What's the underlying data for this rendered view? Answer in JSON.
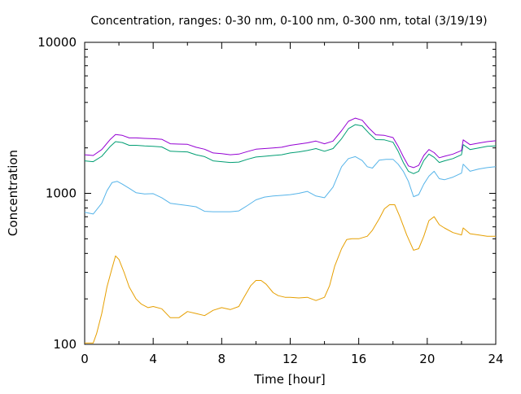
{
  "chart_data": {
    "type": "line",
    "title": "Concentration, ranges: 0-30 nm, 0-100 nm, 0-300 nm, total (3/19/19)",
    "xlabel": "Time [hour]",
    "ylabel": "Concentration",
    "xlim": [
      0,
      24
    ],
    "ylim": [
      100,
      10000
    ],
    "yscale": "log",
    "grid": false,
    "x_ticks": [
      "0",
      "4",
      "8",
      "12",
      "16",
      "20",
      "24"
    ],
    "x_tick_values": [
      0,
      4,
      8,
      12,
      16,
      20,
      24
    ],
    "y_ticks": [
      "100",
      "1000",
      "10000"
    ],
    "y_tick_values": [
      100,
      1000,
      10000
    ],
    "colors": [
      "#e69f00",
      "#56b4e9",
      "#009e73",
      "#9400d3"
    ],
    "series": [
      {
        "x": [
          0,
          0.5,
          0.7,
          1.0,
          1.3,
          1.6,
          1.8,
          2.0,
          2.3,
          2.6,
          3.0,
          3.3,
          3.7,
          4.0,
          4.5,
          5.0,
          5.5,
          6.0,
          6.5,
          7.0,
          7.5,
          8.0,
          8.5,
          9.0,
          9.3,
          9.7,
          10.0,
          10.3,
          10.6,
          11.0,
          11.3,
          11.7,
          12.0,
          12.5,
          13.0,
          13.5,
          14.0,
          14.3,
          14.6,
          15.0,
          15.3,
          15.6,
          16.0,
          16.5,
          16.8,
          17.2,
          17.5,
          17.8,
          18.1,
          18.4,
          18.8,
          19.2,
          19.5,
          19.8,
          20.1,
          20.4,
          20.7,
          21.0,
          21.5,
          22.0,
          22.1,
          22.5,
          23.0,
          23.5,
          24.0
        ],
        "values": [
          102,
          102,
          118,
          160,
          240,
          320,
          385,
          365,
          300,
          240,
          200,
          185,
          175,
          178,
          172,
          150,
          150,
          165,
          160,
          155,
          168,
          175,
          170,
          178,
          205,
          245,
          265,
          265,
          250,
          220,
          210,
          205,
          205,
          203,
          205,
          195,
          205,
          245,
          330,
          430,
          495,
          500,
          500,
          520,
          570,
          680,
          790,
          840,
          840,
          700,
          530,
          420,
          430,
          520,
          660,
          700,
          620,
          590,
          550,
          530,
          590,
          540,
          530,
          520,
          520
        ]
      },
      {
        "x": [
          0,
          0.5,
          1.0,
          1.3,
          1.6,
          1.9,
          2.2,
          2.6,
          3.0,
          3.5,
          4.0,
          4.5,
          5.0,
          5.5,
          6.0,
          6.5,
          7.0,
          7.5,
          8.0,
          8.5,
          9.0,
          9.5,
          10.0,
          10.5,
          11.0,
          11.5,
          12.0,
          12.5,
          13.0,
          13.5,
          14.0,
          14.5,
          15.0,
          15.4,
          15.8,
          16.2,
          16.5,
          16.8,
          17.2,
          17.6,
          18.0,
          18.3,
          18.6,
          18.9,
          19.2,
          19.5,
          19.8,
          20.1,
          20.4,
          20.7,
          21.0,
          21.5,
          22.0,
          22.1,
          22.5,
          23.0,
          23.5,
          24.0
        ],
        "values": [
          750,
          730,
          860,
          1040,
          1180,
          1200,
          1150,
          1080,
          1010,
          990,
          995,
          935,
          860,
          845,
          830,
          815,
          760,
          755,
          755,
          755,
          765,
          830,
          905,
          945,
          960,
          970,
          980,
          1000,
          1030,
          960,
          935,
          1100,
          1500,
          1700,
          1750,
          1650,
          1500,
          1470,
          1660,
          1680,
          1680,
          1560,
          1400,
          1200,
          950,
          980,
          1150,
          1300,
          1400,
          1250,
          1230,
          1280,
          1360,
          1560,
          1400,
          1450,
          1480,
          1500
        ]
      },
      {
        "x": [
          0,
          0.5,
          1.0,
          1.5,
          1.8,
          2.2,
          2.6,
          3.0,
          3.5,
          4.0,
          4.5,
          5.0,
          5.5,
          6.0,
          6.5,
          7.0,
          7.5,
          8.0,
          8.5,
          9.0,
          9.5,
          10.0,
          10.5,
          11.0,
          11.5,
          12.0,
          12.5,
          13.0,
          13.5,
          14.0,
          14.5,
          15.0,
          15.4,
          15.8,
          16.2,
          16.6,
          17.0,
          17.5,
          18.0,
          18.3,
          18.6,
          18.9,
          19.2,
          19.5,
          19.8,
          20.1,
          20.4,
          20.7,
          21.0,
          21.5,
          22.0,
          22.1,
          22.5,
          23.0,
          23.5,
          24.0
        ],
        "values": [
          1640,
          1620,
          1760,
          2050,
          2200,
          2170,
          2080,
          2080,
          2060,
          2050,
          2030,
          1900,
          1890,
          1880,
          1800,
          1750,
          1640,
          1620,
          1600,
          1610,
          1680,
          1740,
          1760,
          1780,
          1800,
          1850,
          1880,
          1920,
          1980,
          1900,
          1980,
          2300,
          2680,
          2850,
          2800,
          2500,
          2270,
          2260,
          2180,
          1900,
          1600,
          1400,
          1350,
          1400,
          1650,
          1820,
          1730,
          1600,
          1640,
          1700,
          1800,
          2100,
          1950,
          2000,
          2050,
          2060
        ]
      },
      {
        "x": [
          0,
          0.5,
          1.0,
          1.5,
          1.8,
          2.2,
          2.6,
          3.0,
          3.5,
          4.0,
          4.5,
          5.0,
          5.5,
          6.0,
          6.5,
          7.0,
          7.5,
          8.0,
          8.5,
          9.0,
          9.5,
          10.0,
          10.5,
          11.0,
          11.5,
          12.0,
          12.5,
          13.0,
          13.5,
          14.0,
          14.5,
          15.0,
          15.4,
          15.8,
          16.2,
          16.6,
          17.0,
          17.5,
          18.0,
          18.3,
          18.6,
          18.9,
          19.2,
          19.5,
          19.8,
          20.1,
          20.4,
          20.7,
          21.0,
          21.5,
          22.0,
          22.1,
          22.5,
          23.0,
          23.5,
          24.0
        ],
        "values": [
          1800,
          1780,
          1950,
          2280,
          2450,
          2420,
          2330,
          2330,
          2310,
          2300,
          2280,
          2130,
          2120,
          2110,
          2020,
          1960,
          1850,
          1830,
          1800,
          1820,
          1890,
          1960,
          1980,
          2000,
          2020,
          2080,
          2120,
          2160,
          2220,
          2130,
          2220,
          2600,
          3000,
          3150,
          3050,
          2700,
          2440,
          2420,
          2340,
          2050,
          1750,
          1520,
          1480,
          1530,
          1780,
          1950,
          1860,
          1720,
          1760,
          1820,
          1920,
          2260,
          2100,
          2150,
          2200,
          2230
        ]
      }
    ]
  }
}
